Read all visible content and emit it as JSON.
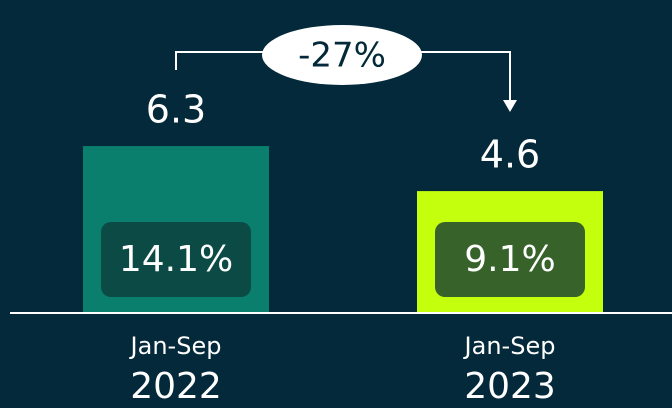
{
  "chart_data": {
    "type": "bar",
    "categories": [
      "2022",
      "2023"
    ],
    "period_labels": [
      "Jan-Sep",
      "Jan-Sep"
    ],
    "series": [
      {
        "colors": [
          "#0b7f6e",
          "#c4ff0e"
        ],
        "values": [
          6.3,
          4.6
        ]
      }
    ],
    "shares": {
      "values": [
        14.1,
        9.1
      ],
      "value_labels": [
        "14.1%",
        "9.1%"
      ],
      "colors": [
        "#0c4a45",
        "#37622a"
      ]
    },
    "change": {
      "value": -27,
      "label": "-27%"
    },
    "ylim": [
      0,
      10
    ]
  }
}
